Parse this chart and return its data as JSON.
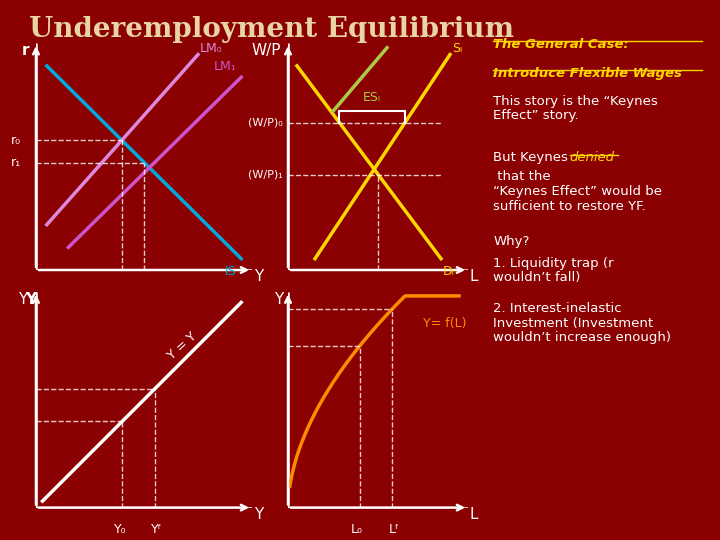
{
  "title": "Underemployment Equilibrium",
  "title_color": "#E8D5A3",
  "bg_color": "#8B0000",
  "panel1": {
    "xlabel": "Y",
    "ylabel": "r",
    "r0_label": "r₀",
    "r1_label": "r₁",
    "LM0_label": "LM₀",
    "LM1_label": "LM₁",
    "IS_label": "IS",
    "LM0_color": "#DD88DD",
    "LM1_color": "#CC55CC",
    "IS_color": "#00AADD"
  },
  "panel2": {
    "xlabel": "L",
    "ylabel": "W/P",
    "ESL_label": "ESₗ",
    "SL_label": "Sₗ",
    "DL_label": "Dₗ",
    "wp0_label": "(W/P)₀",
    "wp1_label": "(W/P)₁",
    "SL_color": "#FFD700",
    "DL_color": "#FFD700",
    "ESL_color": "#AACC44"
  },
  "panel3": {
    "xlabel": "Y",
    "ylabel": "Y",
    "line_label": "Y = Y",
    "Y0_label": "Y₀",
    "YF_label": "Yᶠ",
    "line_color": "white"
  },
  "panel4": {
    "xlabel": "L",
    "ylabel": "Y",
    "curve_label": "Y= f(L)",
    "L0_label": "L₀",
    "LF_label": "Lᶠ",
    "curve_color": "#FF8C00"
  },
  "text_general_case": "The General Case:\nIntroduce Flexible Wages",
  "text_general_color": "#FFD700",
  "text_body1": "This story is the “Keynes\nEffect” story.",
  "text_body2_pre": "But Keynes ",
  "text_body2_denied": "denied",
  "text_body2_post": " that the\n“Keynes Effect” would be\nsufficient to restore YF.",
  "text_why": "Why?",
  "text_body4": "1. Liquidity trap (r\nwouldn’t fall)\n\n2. Interest-inelastic\nInvestment (Investment\nwouldn’t increase enough)",
  "denied_color": "#FFD700"
}
